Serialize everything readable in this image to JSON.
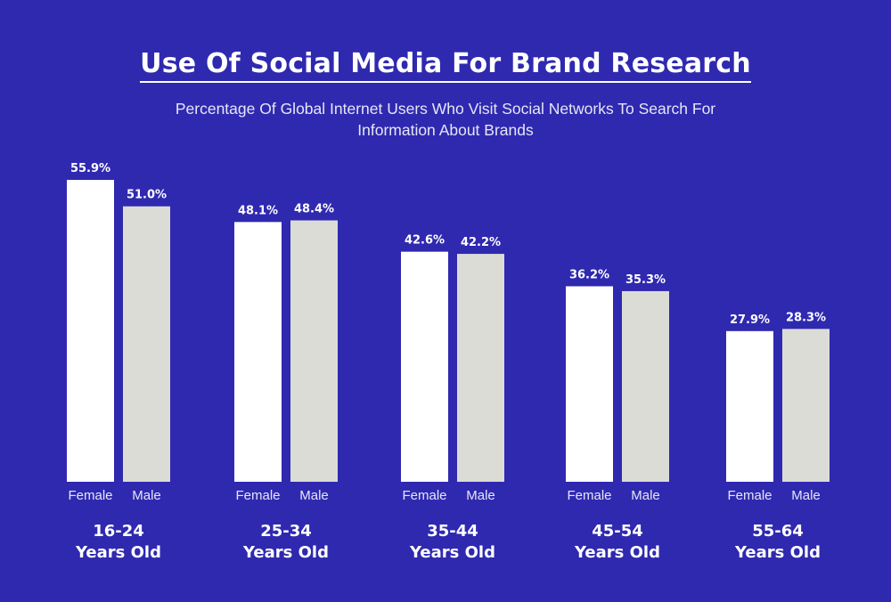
{
  "title": "Use Of Social Media For Brand Research",
  "subtitle": "Percentage Of Global Internet Users Who Visit Social Networks To Search For Information About Brands",
  "colors": {
    "background": "#2f29b0",
    "female": "#ffffff",
    "male": "#dcdcd6",
    "text": "#ffffff"
  },
  "chart_data": {
    "type": "bar",
    "title": "Use Of Social Media For Brand Research",
    "subtitle": "Percentage Of Global Internet Users Who Visit Social Networks To Search For Information About Brands",
    "categories": [
      {
        "line1": "16-24",
        "line2": "Years Old"
      },
      {
        "line1": "25-34",
        "line2": "Years Old"
      },
      {
        "line1": "35-44",
        "line2": "Years Old"
      },
      {
        "line1": "45-54",
        "line2": "Years Old"
      },
      {
        "line1": "55-64",
        "line2": "Years Old"
      }
    ],
    "series": [
      {
        "name": "Female",
        "values": [
          55.9,
          48.1,
          42.6,
          36.2,
          27.9
        ]
      },
      {
        "name": "Male",
        "values": [
          51.0,
          48.4,
          42.2,
          35.3,
          28.3
        ]
      }
    ],
    "value_labels": [
      [
        "55.9%",
        "48.1%",
        "42.6%",
        "36.2%",
        "27.9%"
      ],
      [
        "51.0%",
        "48.4%",
        "42.2%",
        "35.3%",
        "28.3%"
      ]
    ],
    "ylim": [
      0,
      55.9
    ],
    "grid": false,
    "legend": "none"
  }
}
